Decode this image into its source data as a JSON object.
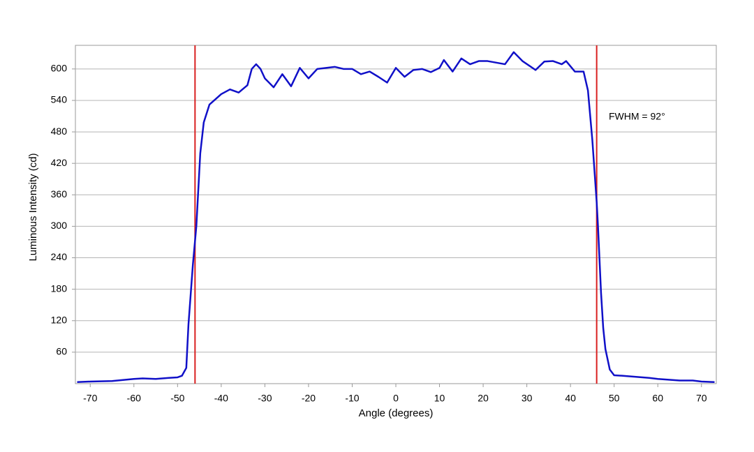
{
  "chart_data": {
    "type": "line",
    "x_label": "Angle (degrees)",
    "y_label": "Luminous Intensity (cd)",
    "annotation": "FWHM = 92°",
    "xlim": [
      -73.4,
      73.4
    ],
    "ylim": [
      0,
      645
    ],
    "xticks": [
      -70,
      -60,
      -50,
      -40,
      -30,
      -20,
      -10,
      0,
      10,
      20,
      30,
      40,
      50,
      60,
      70
    ],
    "yticks": [
      60,
      120,
      180,
      240,
      300,
      360,
      420,
      480,
      540,
      600
    ],
    "grid": true,
    "vlines": [
      -46,
      46
    ],
    "vline_color": "#d92020",
    "x": [
      -73,
      -70,
      -65,
      -60,
      -58,
      -55,
      -52,
      -50,
      -49,
      -48,
      -47.5,
      -46.5,
      -45.7,
      -44.8,
      -44,
      -42.7,
      -40,
      -38,
      -36,
      -34,
      -33,
      -32,
      -31,
      -30,
      -28,
      -26,
      -24,
      -22,
      -20,
      -18,
      -16,
      -14,
      -12,
      -10,
      -8,
      -6,
      -4,
      -2,
      0,
      2,
      4,
      6,
      8,
      10,
      11,
      13,
      15,
      17,
      19,
      21,
      23,
      25,
      27,
      29,
      32,
      34,
      36,
      38,
      39,
      41,
      43,
      44,
      45,
      46,
      46.3,
      47,
      47.5,
      48,
      49,
      50,
      52,
      55,
      58,
      60,
      65,
      68,
      70,
      73
    ],
    "series": [
      {
        "color": "#1010c8",
        "values": [
          3,
          4,
          5,
          9,
          10,
          9,
          11,
          12,
          15,
          30,
          113,
          226,
          300,
          439,
          498,
          532,
          552,
          561,
          555,
          569,
          600,
          609,
          600,
          582,
          565,
          590,
          567,
          602,
          582,
          600,
          602,
          604,
          600,
          600,
          590,
          595,
          585,
          574,
          602,
          585,
          598,
          600,
          594,
          602,
          617,
          595,
          620,
          609,
          615,
          615,
          612,
          609,
          632,
          615,
          598,
          614,
          615,
          609,
          615,
          595,
          595,
          559,
          465,
          346,
          300,
          173,
          106,
          66,
          27,
          16,
          15,
          13,
          11,
          9,
          6,
          6,
          4,
          3
        ]
      }
    ]
  }
}
